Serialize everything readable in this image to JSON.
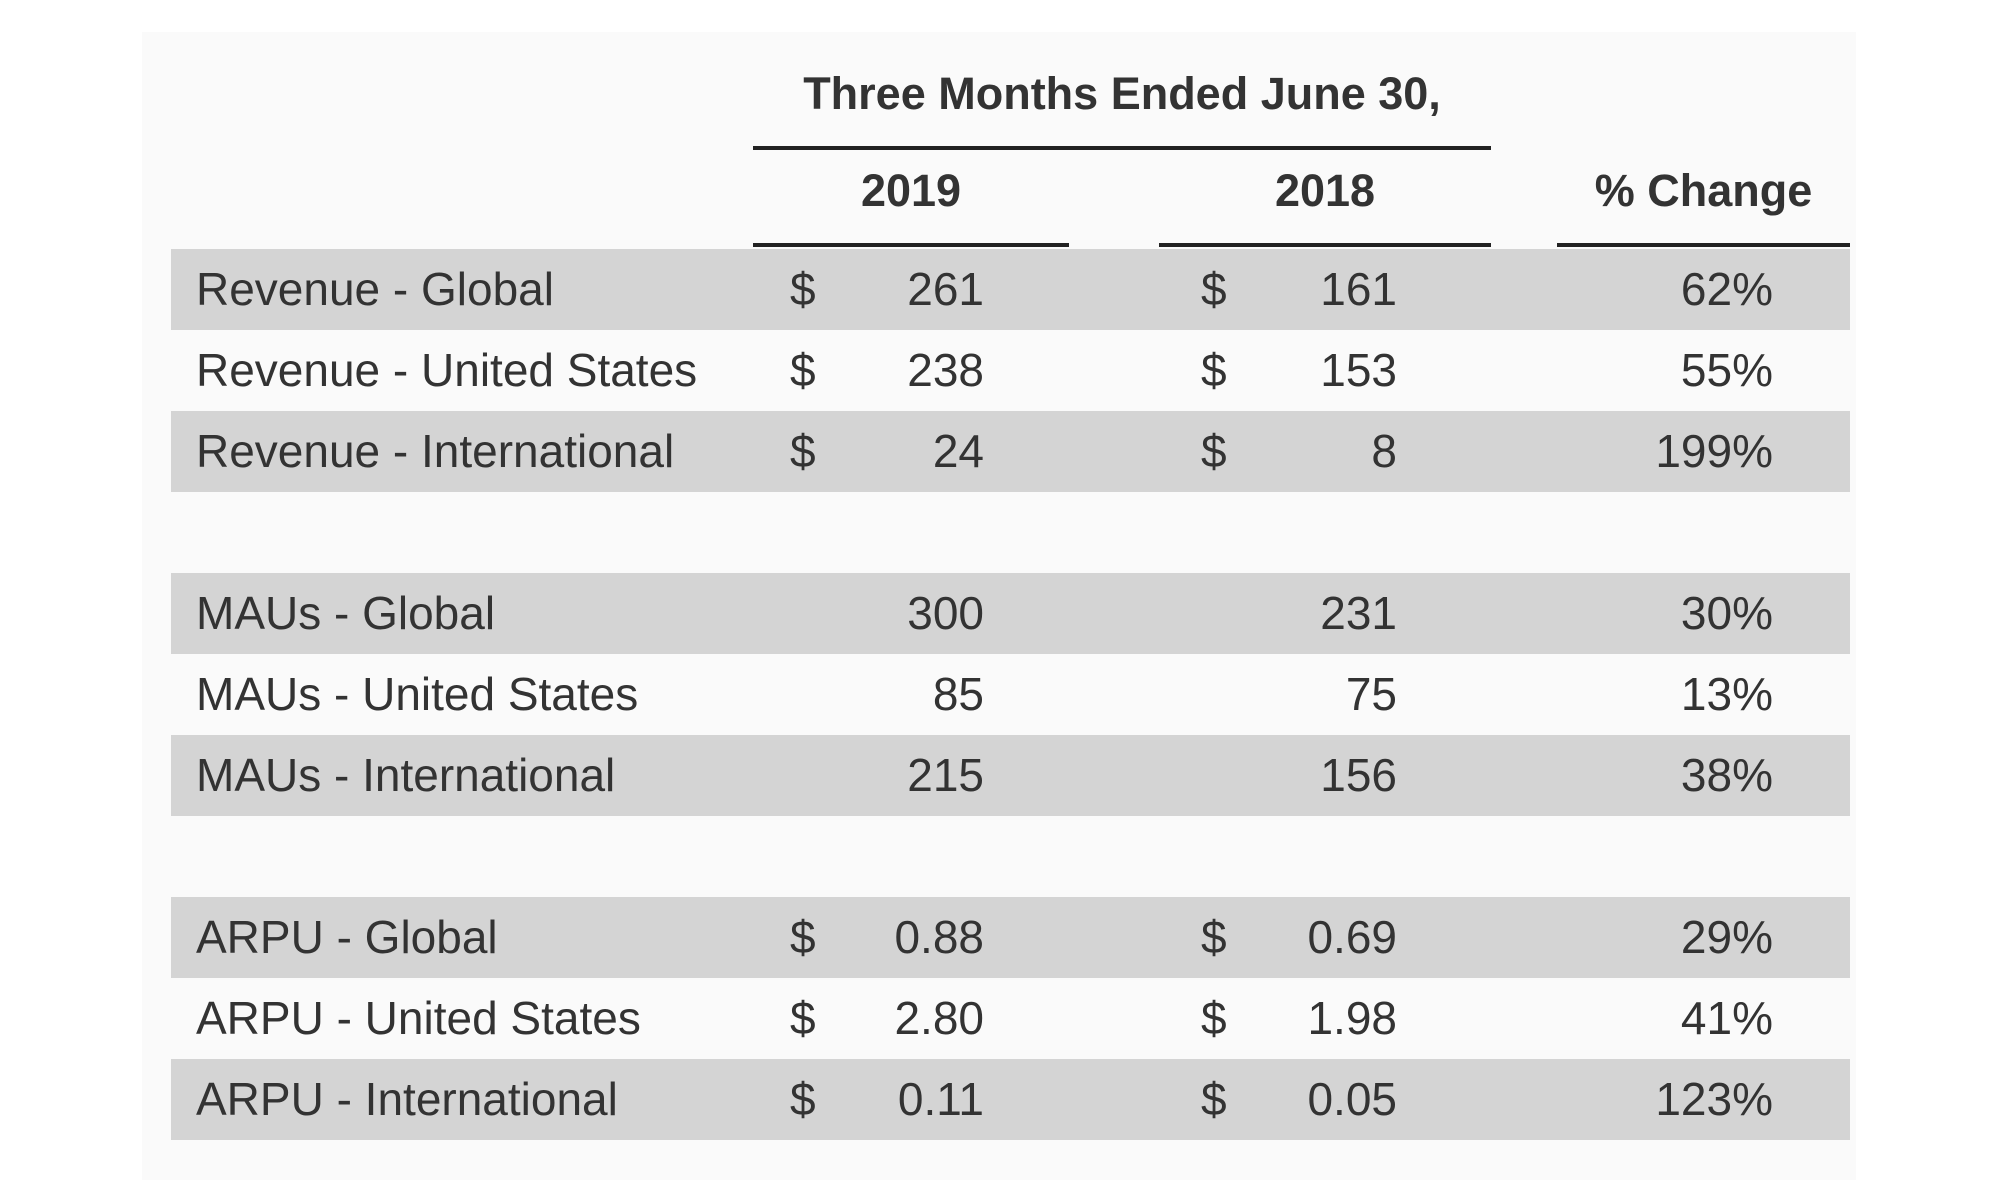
{
  "header": {
    "title": "Three Months Ended June 30,"
  },
  "table": {
    "columns": [
      "2019",
      "2018",
      "% Change"
    ],
    "groups": [
      [
        {
          "label": "Revenue - Global",
          "cur_2019": "$",
          "v2019": "261",
          "cur_2018": "$",
          "v2018": "161",
          "change": "62%"
        },
        {
          "label": "Revenue - United States",
          "cur_2019": "$",
          "v2019": "238",
          "cur_2018": "$",
          "v2018": "153",
          "change": "55%"
        },
        {
          "label": "Revenue - International",
          "cur_2019": "$",
          "v2019": "24",
          "cur_2018": "$",
          "v2018": "8",
          "change": "199%"
        }
      ],
      [
        {
          "label": "MAUs - Global",
          "v2019": "300",
          "v2018": "231",
          "change": "30%"
        },
        {
          "label": "MAUs - United States",
          "v2019": "85",
          "v2018": "75",
          "change": "13%"
        },
        {
          "label": "MAUs - International",
          "v2019": "215",
          "v2018": "156",
          "change": "38%"
        }
      ],
      [
        {
          "label": "ARPU - Global",
          "cur_2019": "$",
          "v2019": "0.88",
          "cur_2018": "$",
          "v2018": "0.69",
          "change": "29%"
        },
        {
          "label": "ARPU - United States",
          "cur_2019": "$",
          "v2019": "2.80",
          "cur_2018": "$",
          "v2018": "1.98",
          "change": "41%"
        },
        {
          "label": "ARPU - International",
          "cur_2019": "$",
          "v2019": "0.11",
          "cur_2018": "$",
          "v2018": "0.05",
          "change": "123%"
        }
      ]
    ]
  }
}
